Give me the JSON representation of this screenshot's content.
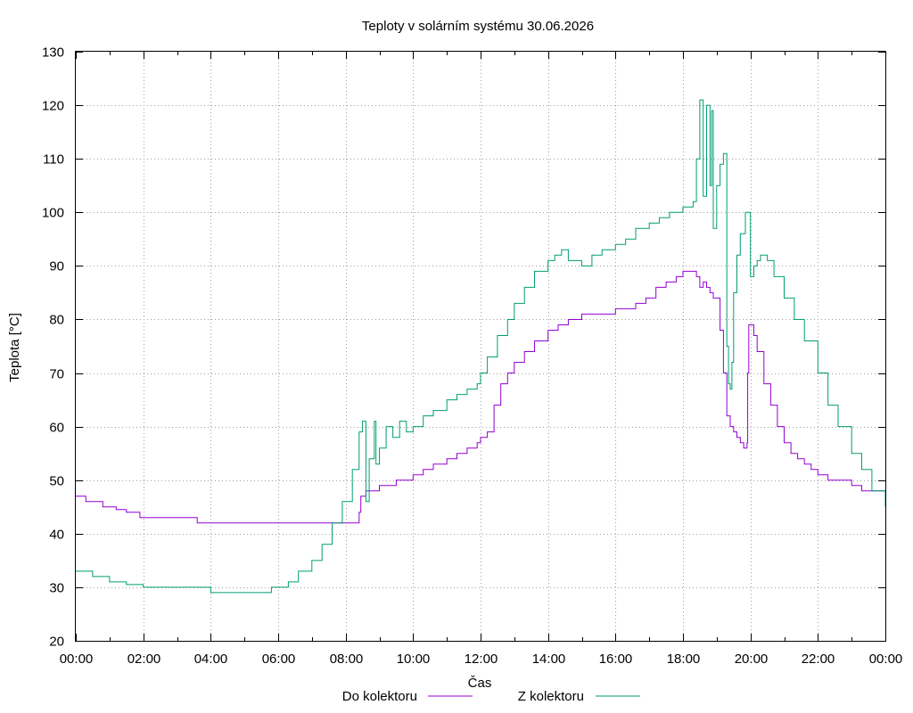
{
  "chart_data": {
    "type": "line",
    "title": "Teploty v solárním systému 30.06.2026",
    "xlabel": "Čas",
    "ylabel": "Teplota [°C]",
    "ylim": [
      20,
      130
    ],
    "xlim": [
      0,
      24
    ],
    "x_unit": "hours",
    "y_ticks": [
      20,
      30,
      40,
      50,
      60,
      70,
      80,
      90,
      100,
      110,
      120,
      130
    ],
    "x_ticks": [
      0,
      2,
      4,
      6,
      8,
      10,
      12,
      14,
      16,
      18,
      20,
      22,
      24
    ],
    "x_tick_labels": [
      "00:00",
      "02:00",
      "04:00",
      "06:00",
      "08:00",
      "10:00",
      "12:00",
      "14:00",
      "16:00",
      "18:00",
      "20:00",
      "22:00",
      "00:00"
    ],
    "grid": true,
    "legend_position": "bottom",
    "series": [
      {
        "name": "Do kolektoru",
        "color": "#9400d3",
        "x": [
          0,
          0.25,
          0.3,
          0.5,
          0.8,
          1.0,
          1.2,
          1.5,
          1.9,
          2.0,
          2.5,
          2.8,
          3.0,
          3.5,
          3.6,
          4.0,
          5.0,
          6.0,
          7.0,
          8.0,
          8.35,
          8.4,
          8.45,
          8.6,
          8.8,
          9.0,
          9.5,
          10.0,
          10.3,
          10.6,
          11.0,
          11.3,
          11.6,
          11.9,
          12.0,
          12.2,
          12.4,
          12.6,
          12.8,
          13.0,
          13.3,
          13.6,
          14.0,
          14.3,
          14.6,
          15.0,
          15.5,
          15.8,
          16.0,
          16.3,
          16.6,
          16.9,
          17.2,
          17.5,
          17.8,
          18.0,
          18.2,
          18.4,
          18.5,
          18.6,
          18.7,
          18.8,
          18.9,
          19.0,
          19.1,
          19.2,
          19.3,
          19.4,
          19.5,
          19.6,
          19.7,
          19.8,
          19.9,
          19.92,
          19.95,
          20.0,
          20.1,
          20.2,
          20.4,
          20.6,
          20.8,
          21.0,
          21.2,
          21.4,
          21.6,
          21.8,
          22.0,
          22.3,
          22.6,
          23.0,
          23.3,
          23.6,
          24.0
        ],
        "values": [
          47,
          47,
          46,
          46,
          45,
          45,
          44.5,
          44,
          43,
          43,
          43,
          43,
          43,
          43,
          42,
          42,
          42,
          42,
          42,
          42,
          42,
          44,
          47,
          48,
          48,
          49,
          50,
          51,
          52,
          53,
          54,
          55,
          56,
          57,
          58,
          59,
          64,
          68,
          70,
          72,
          74,
          76,
          78,
          79,
          80,
          81,
          81,
          81,
          82,
          82,
          83,
          84,
          86,
          87,
          88,
          89,
          89,
          88,
          86,
          87,
          86,
          85,
          84,
          84,
          78,
          70,
          62,
          60,
          59,
          58,
          57,
          56,
          57,
          70,
          79,
          79,
          77,
          74,
          68,
          64,
          60,
          57,
          55,
          54,
          53,
          52,
          51,
          50,
          50,
          49,
          48,
          48,
          48
        ]
      },
      {
        "name": "Z kolektoru",
        "color": "#009e73",
        "x": [
          0,
          0.3,
          0.5,
          0.8,
          1.0,
          1.3,
          1.5,
          2.0,
          3.0,
          3.9,
          4.0,
          5.0,
          5.7,
          5.8,
          6.0,
          6.3,
          6.6,
          7.0,
          7.3,
          7.6,
          7.9,
          8.2,
          8.4,
          8.5,
          8.6,
          8.7,
          8.85,
          8.9,
          9.0,
          9.2,
          9.4,
          9.6,
          9.8,
          10.0,
          10.3,
          10.6,
          11.0,
          11.3,
          11.6,
          11.9,
          12.0,
          12.2,
          12.5,
          12.8,
          13.0,
          13.3,
          13.6,
          14.0,
          14.2,
          14.4,
          14.6,
          15.0,
          15.3,
          15.6,
          16.0,
          16.3,
          16.6,
          17.0,
          17.3,
          17.6,
          18.0,
          18.3,
          18.4,
          18.5,
          18.6,
          18.7,
          18.8,
          18.85,
          18.9,
          19.0,
          19.1,
          19.2,
          19.3,
          19.35,
          19.4,
          19.45,
          19.5,
          19.6,
          19.7,
          19.85,
          19.95,
          20.0,
          20.1,
          20.2,
          20.3,
          20.5,
          20.7,
          21.0,
          21.3,
          21.6,
          22.0,
          22.3,
          22.6,
          23.0,
          23.3,
          23.6,
          24.0
        ],
        "values": [
          33,
          33,
          32,
          32,
          31,
          31,
          30.5,
          30,
          30,
          30,
          29,
          29,
          29,
          30,
          30,
          31,
          33,
          35,
          38,
          42,
          46,
          52,
          59,
          61,
          46,
          54,
          61,
          53,
          56,
          60,
          58,
          61,
          59,
          60,
          62,
          63,
          65,
          66,
          67,
          68,
          70,
          73,
          77,
          80,
          83,
          86,
          89,
          91,
          92,
          93,
          91,
          90,
          92,
          93,
          94,
          95,
          97,
          98,
          99,
          100,
          101,
          102,
          110,
          121,
          103,
          120,
          105,
          119,
          97,
          105,
          109,
          111,
          75,
          68,
          67,
          72,
          85,
          92,
          96,
          100,
          100,
          88,
          90,
          91,
          92,
          91,
          88,
          84,
          80,
          76,
          70,
          64,
          60,
          55,
          52,
          48,
          45
        ]
      }
    ]
  }
}
